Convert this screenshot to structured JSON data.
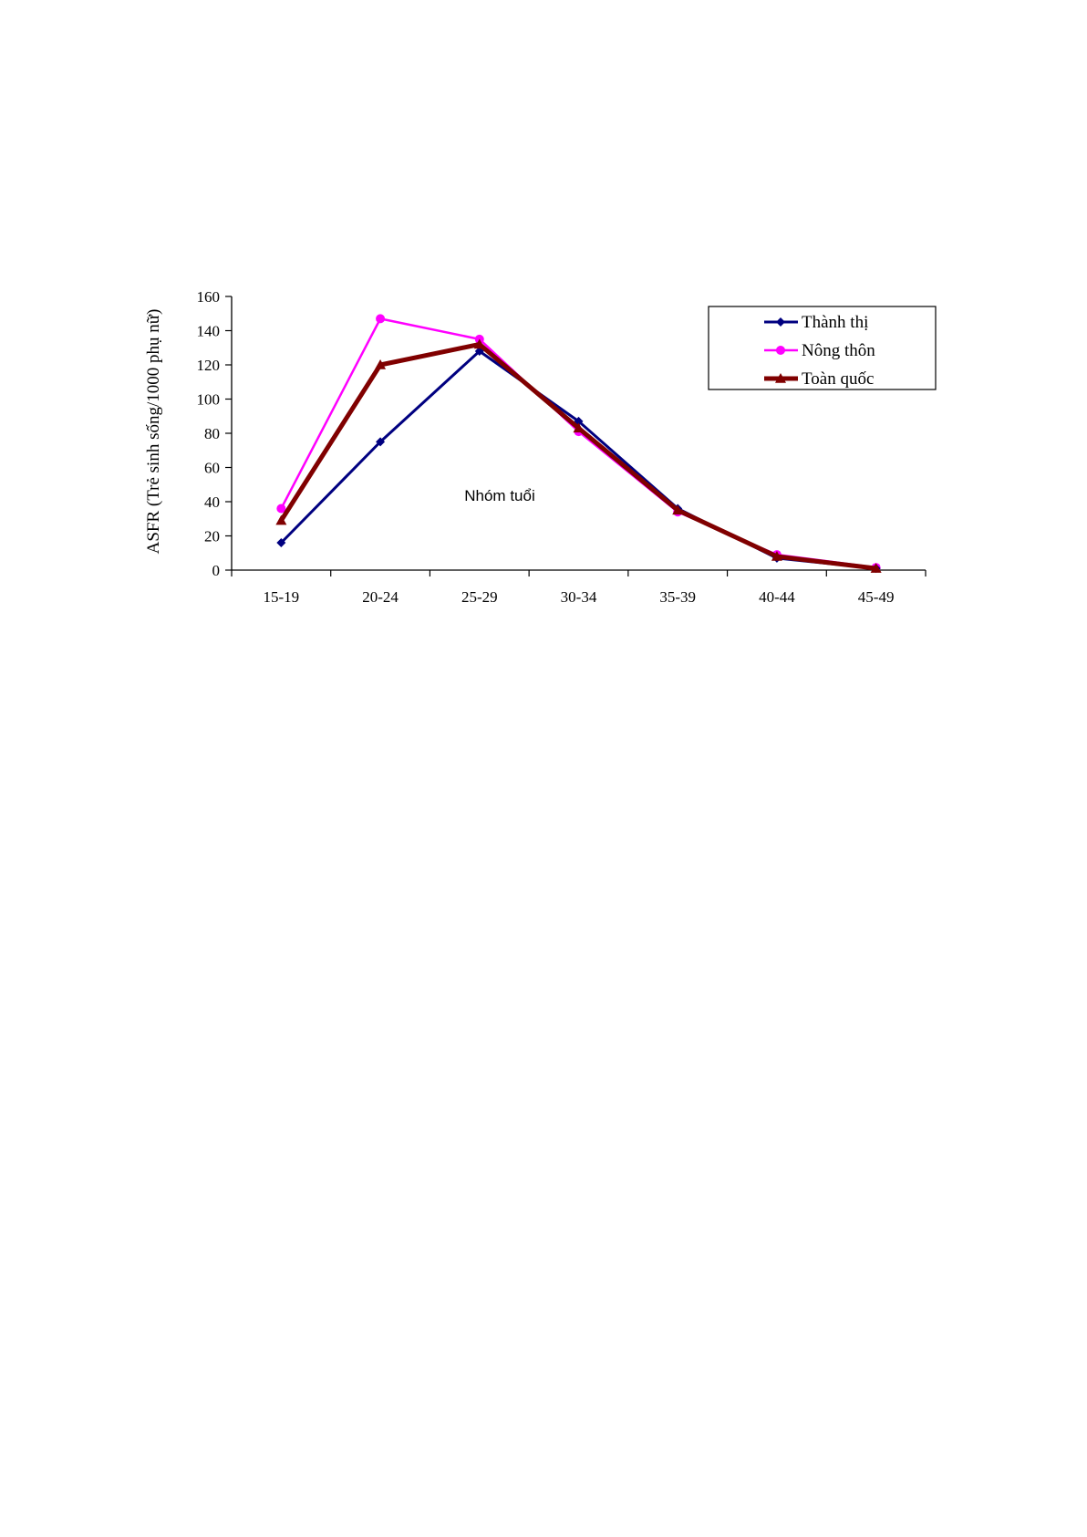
{
  "chart_data": {
    "type": "line",
    "title": "",
    "xlabel": "",
    "ylabel": "ASFR (Trẻ sinh sống/1000 phụ nữ)",
    "annotation": "Nhóm tuổi",
    "categories": [
      "15-19",
      "20-24",
      "25-29",
      "30-34",
      "35-39",
      "40-44",
      "45-49"
    ],
    "ylim": [
      0,
      160
    ],
    "yticks": [
      0,
      20,
      40,
      60,
      80,
      100,
      120,
      140,
      160
    ],
    "grid": false,
    "legend_position": "top-right",
    "series": [
      {
        "name": "Thành thị",
        "color": "#000080",
        "marker": "diamond",
        "values": [
          16,
          75,
          128,
          87,
          36,
          7,
          1
        ]
      },
      {
        "name": "Nông thôn",
        "color": "#ff00ff",
        "marker": "circle",
        "values": [
          36,
          147,
          135,
          81,
          34,
          9,
          1.5
        ]
      },
      {
        "name": "Toàn quốc",
        "color": "#800000",
        "marker": "triangle",
        "values": [
          29,
          120,
          132,
          83,
          35,
          8,
          1
        ]
      }
    ]
  }
}
